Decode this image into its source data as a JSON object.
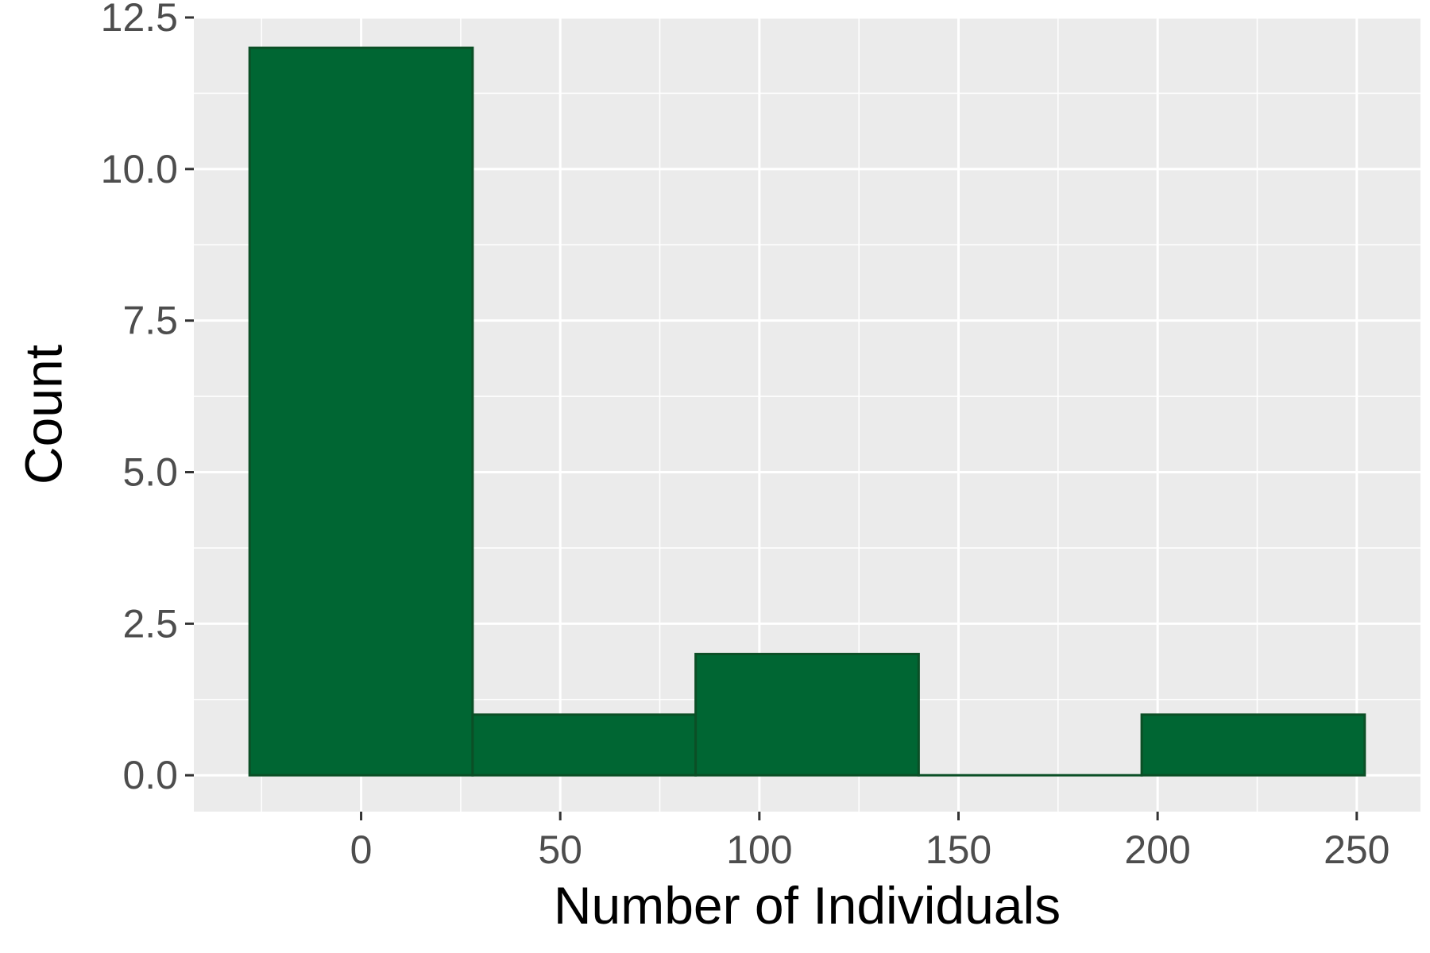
{
  "chart_data": {
    "type": "bar",
    "subtype": "histogram",
    "title": "",
    "xlabel": "Number of Individuals",
    "ylabel": "Count",
    "bins": [
      {
        "x_start": -28,
        "x_end": 28,
        "count": 12
      },
      {
        "x_start": 28,
        "x_end": 84,
        "count": 1
      },
      {
        "x_start": 84,
        "x_end": 140,
        "count": 2
      },
      {
        "x_start": 140,
        "x_end": 196,
        "count": 0
      },
      {
        "x_start": 196,
        "x_end": 252,
        "count": 1
      }
    ],
    "xlim": [
      -42,
      266
    ],
    "ylim": [
      -0.6,
      12.5
    ],
    "x_ticks": [
      0,
      50,
      100,
      150,
      200,
      250
    ],
    "x_tick_labels": [
      "0",
      "50",
      "100",
      "150",
      "200",
      "250"
    ],
    "y_ticks": [
      0,
      2.5,
      5,
      7.5,
      10,
      12.5
    ],
    "y_tick_labels": [
      "0.0",
      "2.5",
      "5.0",
      "7.5",
      "10.0",
      "12.5"
    ],
    "grid": true,
    "legend": "none",
    "colors": {
      "bar_fill": "#006633",
      "bar_stroke": "#0b4f26",
      "panel_background": "#ebebeb",
      "grid_line": "#ffffff"
    }
  }
}
